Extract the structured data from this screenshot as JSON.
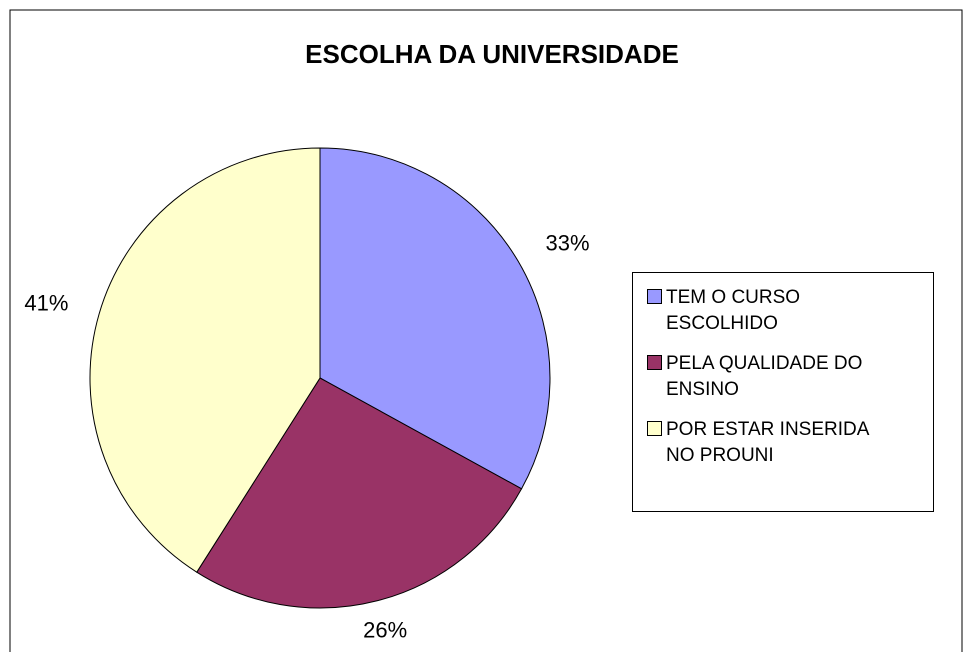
{
  "chart_data": {
    "type": "pie",
    "title": "ESCOLHA DA UNIVERSIDADE",
    "categories": [
      "TEM O CURSO ESCOLHIDO",
      "PELA QUALIDADE DO ENSINO",
      "POR ESTAR INSERIDA NO PROUNI"
    ],
    "values": [
      33,
      26,
      41
    ],
    "value_labels": [
      "33%",
      "26%",
      "41%"
    ],
    "colors": [
      "#9999ff",
      "#993366",
      "#ffffcc"
    ],
    "legend": "right"
  }
}
